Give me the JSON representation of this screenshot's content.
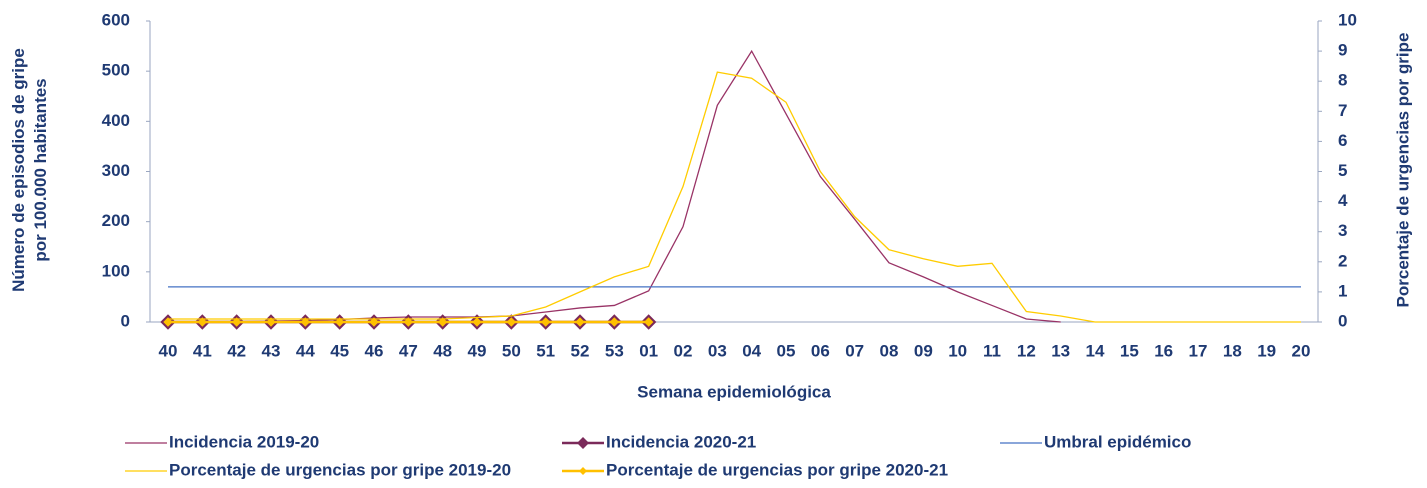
{
  "chart_data": {
    "type": "line",
    "xlabel": "Semana epidemiológica",
    "ylabel": "Número de episodios de gripe por 100.000 habitantes",
    "y2label": "Porcentaje de urgencias por gripe",
    "categories": [
      "40",
      "41",
      "42",
      "43",
      "44",
      "45",
      "46",
      "47",
      "48",
      "49",
      "50",
      "51",
      "52",
      "53",
      "01",
      "02",
      "03",
      "04",
      "05",
      "06",
      "07",
      "08",
      "09",
      "10",
      "11",
      "12",
      "13",
      "14",
      "15",
      "16",
      "17",
      "18",
      "19",
      "20"
    ],
    "ylim": [
      0,
      600
    ],
    "yticks": [
      0,
      100,
      200,
      300,
      400,
      500,
      600
    ],
    "y2lim": [
      0,
      10
    ],
    "y2ticks": [
      0,
      1,
      2,
      3,
      4,
      5,
      6,
      7,
      8,
      9,
      10
    ],
    "series": [
      {
        "name": "Incidencia 2019-20",
        "color": "#993366",
        "values": [
          0,
          1,
          1,
          2,
          3,
          5,
          8,
          10,
          10,
          10,
          12,
          20,
          28,
          33,
          62,
          190,
          432,
          540,
          415,
          290,
          205,
          118,
          90,
          60,
          33,
          6,
          0,
          null,
          null,
          null,
          null,
          null,
          null,
          null
        ]
      },
      {
        "name": "Incidencia 2020-21",
        "color": "#7b2a5a",
        "marker": "diamond",
        "values": [
          0,
          0,
          0,
          0,
          0,
          0,
          0,
          0,
          0,
          0,
          0,
          0,
          0,
          0,
          0,
          null,
          null,
          null,
          null,
          null,
          null,
          null,
          null,
          null,
          null,
          null,
          null,
          null,
          null,
          null,
          null,
          null,
          null,
          null
        ]
      },
      {
        "name": "Umbral epidémico",
        "color": "#4472c4",
        "values": [
          70,
          70,
          70,
          70,
          70,
          70,
          70,
          70,
          70,
          70,
          70,
          70,
          70,
          70,
          70,
          70,
          70,
          70,
          70,
          70,
          70,
          70,
          70,
          70,
          70,
          70,
          70,
          70,
          70,
          70,
          70,
          70,
          70,
          70
        ]
      },
      {
        "name": "Porcentaje de urgencias por gripe 2019-20",
        "color": "#ffcc00",
        "axis": "y2",
        "values": [
          0.1,
          0.1,
          0.1,
          0.1,
          0.1,
          0.1,
          0.1,
          0.1,
          0.1,
          0.15,
          0.2,
          0.5,
          1.0,
          1.5,
          1.85,
          4.5,
          8.3,
          8.1,
          7.3,
          5.0,
          3.5,
          2.4,
          2.1,
          1.85,
          1.95,
          0.35,
          0.2,
          0,
          0,
          0,
          0,
          0,
          0,
          0
        ]
      },
      {
        "name": "Porcentaje de urgencias por gripe 2020-21",
        "color": "#ffc000",
        "axis": "y2",
        "marker": "diamond",
        "values": [
          0,
          0,
          0,
          0,
          0,
          0,
          0,
          0,
          0,
          0,
          0,
          0,
          0,
          0,
          0,
          null,
          null,
          null,
          null,
          null,
          null,
          null,
          null,
          null,
          null,
          null,
          null,
          null,
          null,
          null,
          null,
          null,
          null,
          null
        ]
      }
    ]
  }
}
